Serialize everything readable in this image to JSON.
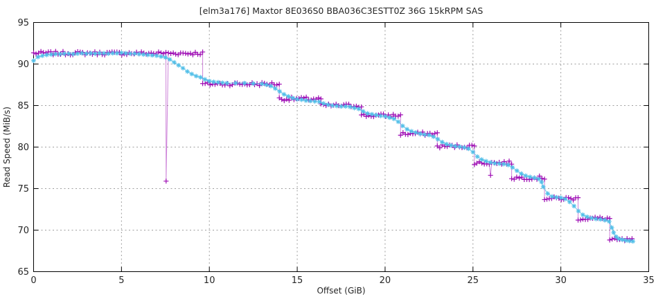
{
  "chart_data": {
    "type": "line",
    "title": "[elm3a176] Maxtor 8E036S0 BBA036C3ESTT0Z 36G 15kRPM SAS",
    "xlabel": "Offset (GiB)",
    "ylabel": "Read Speed (MiB/s)",
    "xlim": [
      0,
      35
    ],
    "ylim": [
      65,
      95
    ],
    "xticks": [
      0,
      5,
      10,
      15,
      20,
      25,
      30,
      35
    ],
    "yticks": [
      65,
      70,
      75,
      80,
      85,
      90,
      95
    ],
    "grid": true,
    "grid_color": "#9e9e9e",
    "legend": "none",
    "background": "#ffffff",
    "series": [
      {
        "name": "read-speed-zones-plus",
        "description": "stepped per-zone read speed, dense + markers",
        "marker": "plus",
        "color": "#9e0cb4",
        "line_opacity": 0.5,
        "marker_step": 0.14,
        "jitter": 0.22,
        "segments": [
          {
            "from": 0.0,
            "to": 9.62,
            "value": 91.3
          },
          {
            "from": 9.62,
            "to": 13.98,
            "value": 87.6
          },
          {
            "from": 13.98,
            "to": 16.35,
            "value": 85.8
          },
          {
            "from": 16.35,
            "to": 18.65,
            "value": 85.0
          },
          {
            "from": 18.65,
            "to": 20.88,
            "value": 83.8
          },
          {
            "from": 20.88,
            "to": 22.97,
            "value": 81.6
          },
          {
            "from": 22.97,
            "to": 25.08,
            "value": 80.1
          },
          {
            "from": 25.08,
            "to": 27.2,
            "value": 78.1
          },
          {
            "from": 27.2,
            "to": 29.07,
            "value": 76.3
          },
          {
            "from": 29.07,
            "to": 30.98,
            "value": 73.8
          },
          {
            "from": 30.98,
            "to": 32.78,
            "value": 71.4
          },
          {
            "from": 32.78,
            "to": 34.05,
            "value": 68.8
          }
        ],
        "spikes": [
          {
            "x": 7.54,
            "y": 75.9
          },
          {
            "x": 26.0,
            "y": 76.6
          }
        ]
      },
      {
        "name": "read-speed-smoothed-star",
        "description": "smoothed read speed curve, * markers",
        "marker": "asterisk",
        "color": "#52bfe8",
        "line_opacity": 0.85,
        "points": [
          [
            0,
            90.4
          ],
          [
            0.25,
            90.85
          ],
          [
            0.5,
            91.0
          ],
          [
            0.75,
            91.1
          ],
          [
            1,
            91.15
          ],
          [
            1.25,
            91.2
          ],
          [
            1.5,
            91.2
          ],
          [
            1.75,
            91.25
          ],
          [
            2,
            91.25
          ],
          [
            2.25,
            91.2
          ],
          [
            2.5,
            91.25
          ],
          [
            2.75,
            91.3
          ],
          [
            3,
            91.25
          ],
          [
            3.25,
            91.3
          ],
          [
            3.5,
            91.25
          ],
          [
            3.75,
            91.3
          ],
          [
            4,
            91.3
          ],
          [
            4.25,
            91.25
          ],
          [
            4.5,
            91.3
          ],
          [
            4.75,
            91.3
          ],
          [
            5,
            91.35
          ],
          [
            5.25,
            91.3
          ],
          [
            5.5,
            91.25
          ],
          [
            5.75,
            91.25
          ],
          [
            6,
            91.2
          ],
          [
            6.25,
            91.15
          ],
          [
            6.5,
            91.1
          ],
          [
            6.75,
            91.05
          ],
          [
            7,
            91.0
          ],
          [
            7.25,
            90.9
          ],
          [
            7.5,
            90.8
          ],
          [
            7.75,
            90.55
          ],
          [
            8,
            90.2
          ],
          [
            8.25,
            89.85
          ],
          [
            8.5,
            89.5
          ],
          [
            8.75,
            89.1
          ],
          [
            9,
            88.8
          ],
          [
            9.25,
            88.55
          ],
          [
            9.5,
            88.4
          ],
          [
            9.75,
            88.15
          ],
          [
            10,
            87.95
          ],
          [
            10.25,
            87.85
          ],
          [
            10.5,
            87.8
          ],
          [
            10.75,
            87.75
          ],
          [
            11,
            87.7
          ],
          [
            11.5,
            87.7
          ],
          [
            12,
            87.7
          ],
          [
            12.5,
            87.65
          ],
          [
            13,
            87.6
          ],
          [
            13.25,
            87.5
          ],
          [
            13.5,
            87.35
          ],
          [
            13.75,
            87.05
          ],
          [
            14,
            86.7
          ],
          [
            14.25,
            86.35
          ],
          [
            14.5,
            86.1
          ],
          [
            14.75,
            85.9
          ],
          [
            15,
            85.75
          ],
          [
            15.25,
            85.7
          ],
          [
            15.5,
            85.6
          ],
          [
            15.75,
            85.55
          ],
          [
            16,
            85.5
          ],
          [
            16.25,
            85.45
          ],
          [
            16.5,
            85.25
          ],
          [
            16.75,
            85.1
          ],
          [
            17,
            85.0
          ],
          [
            17.25,
            84.95
          ],
          [
            17.5,
            84.9
          ],
          [
            17.75,
            84.9
          ],
          [
            18,
            84.85
          ],
          [
            18.25,
            84.7
          ],
          [
            18.5,
            84.6
          ],
          [
            18.75,
            84.3
          ],
          [
            19,
            84.05
          ],
          [
            19.25,
            83.95
          ],
          [
            19.5,
            83.85
          ],
          [
            19.75,
            83.75
          ],
          [
            20,
            83.7
          ],
          [
            20.25,
            83.55
          ],
          [
            20.5,
            83.4
          ],
          [
            20.75,
            83.05
          ],
          [
            21,
            82.55
          ],
          [
            21.25,
            82.15
          ],
          [
            21.5,
            81.9
          ],
          [
            21.75,
            81.75
          ],
          [
            22,
            81.6
          ],
          [
            22.25,
            81.5
          ],
          [
            22.5,
            81.45
          ],
          [
            22.75,
            81.25
          ],
          [
            23,
            80.95
          ],
          [
            23.25,
            80.6
          ],
          [
            23.5,
            80.35
          ],
          [
            23.75,
            80.2
          ],
          [
            24,
            80.1
          ],
          [
            24.25,
            80.05
          ],
          [
            24.5,
            79.95
          ],
          [
            24.75,
            79.8
          ],
          [
            25,
            79.4
          ],
          [
            25.25,
            78.85
          ],
          [
            25.5,
            78.5
          ],
          [
            25.75,
            78.3
          ],
          [
            26,
            78.15
          ],
          [
            26.25,
            78.05
          ],
          [
            26.5,
            78.0
          ],
          [
            26.75,
            77.95
          ],
          [
            27,
            77.85
          ],
          [
            27.25,
            77.55
          ],
          [
            27.5,
            77.15
          ],
          [
            27.75,
            76.8
          ],
          [
            28,
            76.55
          ],
          [
            28.25,
            76.4
          ],
          [
            28.5,
            76.3
          ],
          [
            28.75,
            76.15
          ],
          [
            28.9,
            75.8
          ],
          [
            29,
            75.2
          ],
          [
            29.25,
            74.4
          ],
          [
            29.5,
            74.05
          ],
          [
            29.75,
            73.95
          ],
          [
            30,
            73.9
          ],
          [
            30.25,
            73.75
          ],
          [
            30.5,
            73.4
          ],
          [
            30.75,
            72.9
          ],
          [
            31,
            72.3
          ],
          [
            31.25,
            71.85
          ],
          [
            31.5,
            71.6
          ],
          [
            31.75,
            71.45
          ],
          [
            32,
            71.35
          ],
          [
            32.25,
            71.3
          ],
          [
            32.5,
            71.2
          ],
          [
            32.75,
            71.05
          ],
          [
            32.9,
            70.3
          ],
          [
            33,
            69.7
          ],
          [
            33.15,
            69.2
          ],
          [
            33.3,
            68.95
          ],
          [
            33.5,
            68.85
          ],
          [
            33.7,
            68.75
          ],
          [
            33.9,
            68.7
          ],
          [
            34.1,
            68.65
          ]
        ]
      }
    ]
  }
}
